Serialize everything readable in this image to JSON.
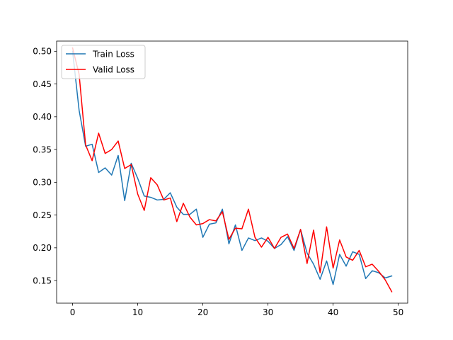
{
  "chart_data": {
    "type": "line",
    "title": "",
    "xlabel": "",
    "ylabel": "",
    "xlim": [
      -2.45,
      51.45
    ],
    "ylim": [
      0.1155,
      0.5155
    ],
    "xticks": [
      0,
      10,
      20,
      30,
      40,
      50
    ],
    "xtick_labels": [
      "0",
      "10",
      "20",
      "30",
      "40",
      "50"
    ],
    "yticks": [
      0.15,
      0.2,
      0.25,
      0.3,
      0.35,
      0.4,
      0.45,
      0.5
    ],
    "ytick_labels": [
      "0.15",
      "0.20",
      "0.25",
      "0.30",
      "0.35",
      "0.40",
      "0.45",
      "0.50"
    ],
    "grid": false,
    "legend_position": "top-left",
    "x": [
      0,
      1,
      2,
      3,
      4,
      5,
      6,
      7,
      8,
      9,
      10,
      11,
      12,
      13,
      14,
      15,
      16,
      17,
      18,
      19,
      20,
      21,
      22,
      23,
      24,
      25,
      26,
      27,
      28,
      29,
      30,
      31,
      32,
      33,
      34,
      35,
      36,
      37,
      38,
      39,
      40,
      41,
      42,
      43,
      44,
      45,
      46,
      47,
      48,
      49
    ],
    "series": [
      {
        "name": "Train Loss",
        "color": "#1f77b4",
        "values": [
          0.5,
          0.41,
          0.355,
          0.358,
          0.315,
          0.322,
          0.311,
          0.341,
          0.272,
          0.329,
          0.306,
          0.279,
          0.277,
          0.273,
          0.274,
          0.284,
          0.262,
          0.251,
          0.251,
          0.259,
          0.216,
          0.236,
          0.238,
          0.259,
          0.206,
          0.235,
          0.196,
          0.215,
          0.211,
          0.215,
          0.21,
          0.199,
          0.205,
          0.217,
          0.196,
          0.228,
          0.192,
          0.175,
          0.152,
          0.18,
          0.144,
          0.19,
          0.172,
          0.194,
          0.19,
          0.153,
          0.165,
          0.162,
          0.154,
          0.157
        ]
      },
      {
        "name": "Valid Loss",
        "color": "#ff0000",
        "values": [
          0.505,
          0.465,
          0.357,
          0.333,
          0.375,
          0.344,
          0.35,
          0.363,
          0.321,
          0.327,
          0.282,
          0.257,
          0.307,
          0.296,
          0.273,
          0.276,
          0.24,
          0.268,
          0.247,
          0.235,
          0.237,
          0.243,
          0.241,
          0.255,
          0.213,
          0.23,
          0.229,
          0.259,
          0.216,
          0.201,
          0.216,
          0.199,
          0.216,
          0.221,
          0.199,
          0.228,
          0.176,
          0.227,
          0.162,
          0.232,
          0.169,
          0.212,
          0.186,
          0.181,
          0.196,
          0.171,
          0.175,
          0.164,
          0.151,
          0.133
        ]
      }
    ]
  }
}
